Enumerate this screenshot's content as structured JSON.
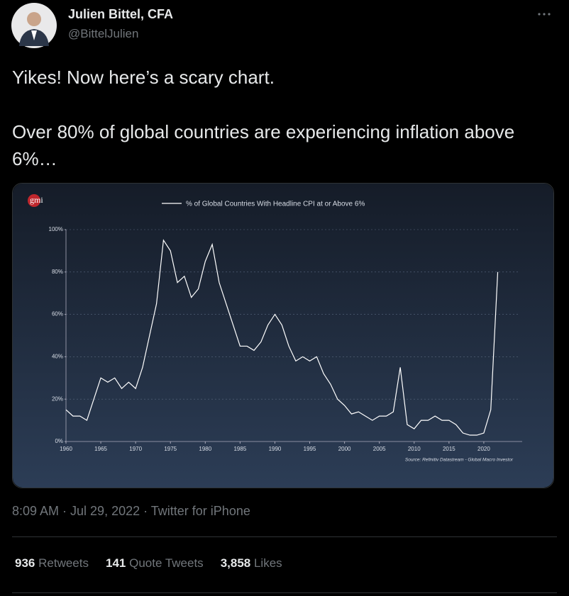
{
  "tweet": {
    "author": {
      "name": "Julien Bittel, CFA",
      "handle": "@BittelJulien"
    },
    "text": [
      "Yikes! Now here’s a scary chart.",
      "Over 80% of global countries are experiencing inflation above 6%…"
    ],
    "timestamp": "8:09 AM · Jul 29, 2022 · Twitter for iPhone",
    "stats": [
      {
        "count": "936",
        "label": "Retweets"
      },
      {
        "count": "141",
        "label": "Quote Tweets"
      },
      {
        "count": "3,858",
        "label": "Likes"
      }
    ]
  },
  "chart_data": {
    "type": "line",
    "logo": "gmi",
    "source": "Source: Refinitiv Datastream - Global Macro Investor",
    "x": [
      1960,
      1961,
      1962,
      1963,
      1964,
      1965,
      1966,
      1967,
      1968,
      1969,
      1970,
      1971,
      1972,
      1973,
      1974,
      1975,
      1976,
      1977,
      1978,
      1979,
      1980,
      1981,
      1982,
      1983,
      1984,
      1985,
      1986,
      1987,
      1988,
      1989,
      1990,
      1991,
      1992,
      1993,
      1994,
      1995,
      1996,
      1997,
      1998,
      1999,
      2000,
      2001,
      2002,
      2003,
      2004,
      2005,
      2006,
      2007,
      2008,
      2009,
      2010,
      2011,
      2012,
      2013,
      2014,
      2015,
      2016,
      2017,
      2018,
      2019,
      2020,
      2021,
      2022
    ],
    "series": [
      {
        "name": "% of Global Countries With Headline CPI at or Above 6%",
        "color": "#ffffff",
        "values": [
          15,
          12,
          12,
          10,
          20,
          30,
          28,
          30,
          25,
          28,
          25,
          35,
          50,
          65,
          95,
          90,
          75,
          78,
          68,
          72,
          85,
          93,
          75,
          65,
          55,
          45,
          45,
          43,
          47,
          55,
          60,
          55,
          45,
          38,
          40,
          38,
          40,
          32,
          27,
          20,
          17,
          13,
          14,
          12,
          10,
          12,
          12,
          14,
          35,
          8,
          6,
          10,
          10,
          12,
          10,
          10,
          8,
          4,
          3,
          3,
          4,
          15,
          80
        ]
      }
    ],
    "xlim": [
      1960,
      2025
    ],
    "ylim": [
      0,
      100
    ],
    "xticks": [
      1960,
      1965,
      1970,
      1975,
      1980,
      1985,
      1990,
      1995,
      2000,
      2005,
      2010,
      2015,
      2020
    ],
    "yticks": [
      {
        "value": 0,
        "label": "0%"
      },
      {
        "value": 20,
        "label": "20%"
      },
      {
        "value": 40,
        "label": "40%"
      },
      {
        "value": 60,
        "label": "60%"
      },
      {
        "value": 80,
        "label": "80%"
      },
      {
        "value": 100,
        "label": "100%"
      }
    ],
    "grid": true
  }
}
